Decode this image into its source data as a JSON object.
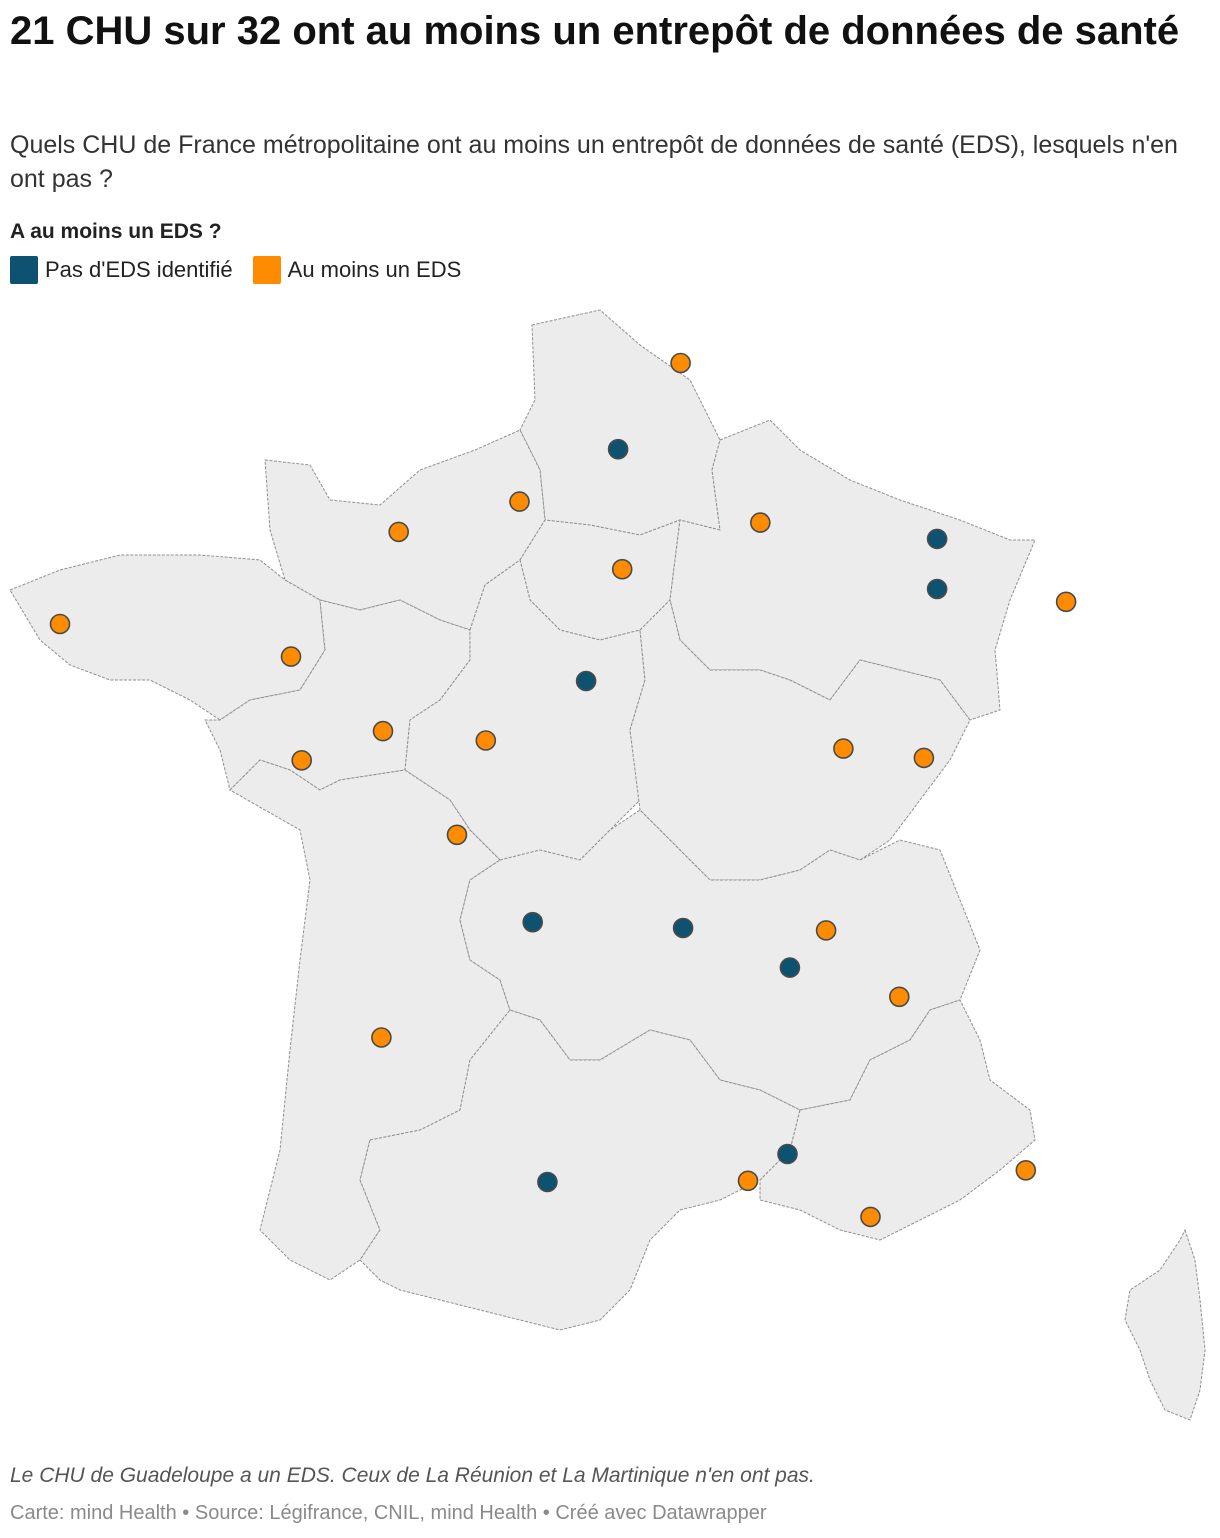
{
  "header": {
    "title": "21 CHU sur 32 ont au moins un entrepôt de données de santé",
    "subtitle": "Quels CHU de France métropolitaine ont au moins un entrepôt de données de santé (EDS), lesquels n'en ont pas ?"
  },
  "legend": {
    "title": "A au moins un EDS ?",
    "items": [
      {
        "label": "Pas d'EDS identifié",
        "color": "#0e5271"
      },
      {
        "label": "Au moins un EDS",
        "color": "#ff8c00"
      }
    ]
  },
  "map": {
    "land_color": "#ececec",
    "border_color": "#8f8f8f",
    "marker_stroke": "#4a4a4a"
  },
  "chart_data": {
    "type": "map",
    "categories": [
      "Pas d'EDS identifié",
      "Au moins un EDS"
    ],
    "colors": {
      "Pas d'EDS identifié": "#0e5271",
      "Au moins un EDS": "#ff8c00"
    },
    "points": [
      {
        "lon": 3.06,
        "lat": 50.63,
        "category": "Au moins un EDS"
      },
      {
        "lon": 2.3,
        "lat": 49.89,
        "category": "Pas d'EDS identifié"
      },
      {
        "lon": 1.1,
        "lat": 49.44,
        "category": "Au moins un EDS"
      },
      {
        "lon": -0.37,
        "lat": 49.18,
        "category": "Au moins un EDS"
      },
      {
        "lon": 4.03,
        "lat": 49.26,
        "category": "Au moins un EDS"
      },
      {
        "lon": 6.18,
        "lat": 49.12,
        "category": "Pas d'EDS identifié"
      },
      {
        "lon": 6.18,
        "lat": 48.69,
        "category": "Pas d'EDS identifié"
      },
      {
        "lon": 7.75,
        "lat": 48.58,
        "category": "Au moins un EDS"
      },
      {
        "lon": 2.35,
        "lat": 48.86,
        "category": "Au moins un EDS"
      },
      {
        "lon": -4.49,
        "lat": 48.39,
        "category": "Au moins un EDS"
      },
      {
        "lon": -1.68,
        "lat": 48.11,
        "category": "Au moins un EDS"
      },
      {
        "lon": 1.91,
        "lat": 47.9,
        "category": "Pas d'EDS identifié"
      },
      {
        "lon": -0.56,
        "lat": 47.47,
        "category": "Au moins un EDS"
      },
      {
        "lon": 0.69,
        "lat": 47.39,
        "category": "Au moins un EDS"
      },
      {
        "lon": -1.55,
        "lat": 47.22,
        "category": "Au moins un EDS"
      },
      {
        "lon": 5.04,
        "lat": 47.32,
        "category": "Au moins un EDS"
      },
      {
        "lon": 6.02,
        "lat": 47.24,
        "category": "Au moins un EDS"
      },
      {
        "lon": 0.34,
        "lat": 46.58,
        "category": "Au moins un EDS"
      },
      {
        "lon": 1.26,
        "lat": 45.83,
        "category": "Pas d'EDS identifié"
      },
      {
        "lon": 3.09,
        "lat": 45.78,
        "category": "Pas d'EDS identifié"
      },
      {
        "lon": 4.83,
        "lat": 45.76,
        "category": "Au moins un EDS"
      },
      {
        "lon": 4.39,
        "lat": 45.44,
        "category": "Pas d'EDS identifié"
      },
      {
        "lon": 5.72,
        "lat": 45.19,
        "category": "Au moins un EDS"
      },
      {
        "lon": -0.58,
        "lat": 44.84,
        "category": "Au moins un EDS"
      },
      {
        "lon": 1.44,
        "lat": 43.6,
        "category": "Pas d'EDS identifié"
      },
      {
        "lon": 4.36,
        "lat": 43.84,
        "category": "Pas d'EDS identifié"
      },
      {
        "lon": 3.88,
        "lat": 43.61,
        "category": "Au moins un EDS"
      },
      {
        "lon": 5.37,
        "lat": 43.3,
        "category": "Au moins un EDS"
      },
      {
        "lon": 7.26,
        "lat": 43.7,
        "category": "Au moins un EDS"
      }
    ]
  },
  "footer": {
    "note": "Le CHU de Guadeloupe a un EDS. Ceux de La Réunion et La Martinique n'en ont pas.",
    "credits": "Carte: mind Health • Source: Légifrance, CNIL, mind Health • Créé avec Datawrapper"
  }
}
